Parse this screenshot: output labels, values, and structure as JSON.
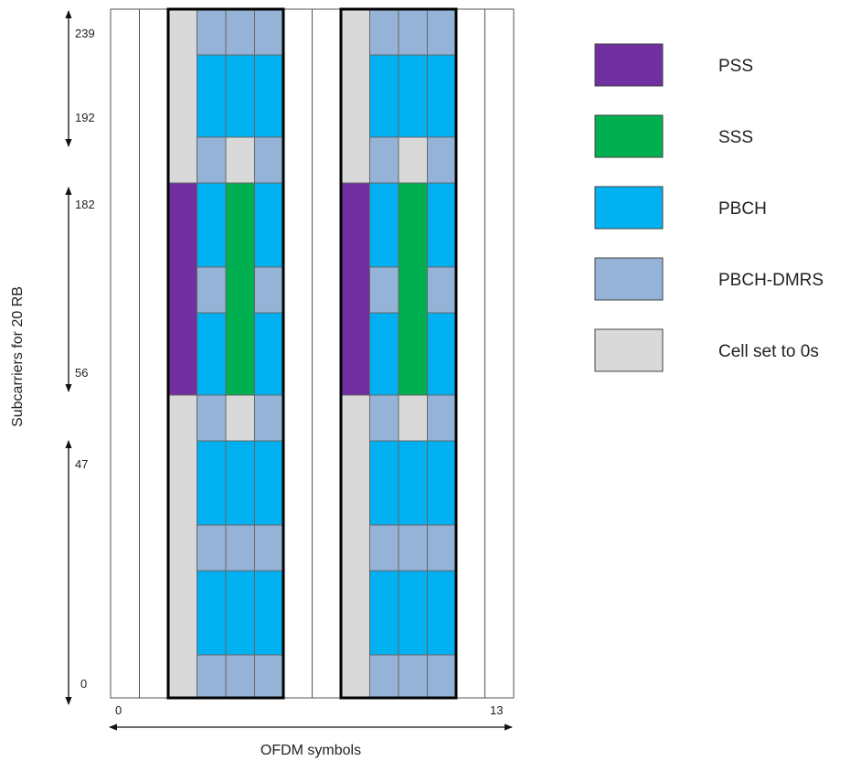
{
  "diagram": {
    "y_axis_label": "Subcarriers for 20 RB",
    "x_axis_label": "OFDM symbols",
    "x_ticks": [
      "0",
      "13"
    ],
    "y_ticks": [
      "239",
      "192",
      "182",
      "56",
      "47",
      "0"
    ],
    "num_symbols": 14,
    "ssb_blocks": [
      {
        "start_symbol": 2,
        "symbols": 4
      },
      {
        "start_symbol": 8,
        "symbols": 4
      }
    ]
  },
  "colors": {
    "pss": "#7030a0",
    "sss": "#00b050",
    "pbch": "#00b0f0",
    "pbch_dmrs": "#95b3d7",
    "zero": "#d9d9d9",
    "empty": "#ffffff"
  },
  "legend": [
    {
      "key": "pss",
      "label": "PSS"
    },
    {
      "key": "sss",
      "label": "SSS"
    },
    {
      "key": "pbch",
      "label": "PBCH"
    },
    {
      "key": "pbch_dmrs",
      "label": "PBCH-DMRS"
    },
    {
      "key": "zero",
      "label": "Cell set to 0s"
    }
  ],
  "ssb_structure": [
    {
      "band": "top-dmrs",
      "cells": [
        "zero",
        "pbch_dmrs",
        "pbch_dmrs",
        "pbch_dmrs"
      ]
    },
    {
      "band": "top-pbch",
      "cells": [
        "zero",
        "pbch",
        "pbch",
        "pbch"
      ]
    },
    {
      "band": "upper-edge",
      "cells": [
        "zero",
        "pbch_dmrs",
        "zero",
        "pbch_dmrs"
      ]
    },
    {
      "band": "sss-pbch-upper",
      "cells": [
        "pss",
        "pbch",
        "sss",
        "pbch"
      ]
    },
    {
      "band": "sss-dmrs",
      "cells": [
        "pss",
        "pbch_dmrs",
        "sss",
        "pbch_dmrs"
      ]
    },
    {
      "band": "sss-pbch-lower",
      "cells": [
        "pss",
        "pbch",
        "sss",
        "pbch"
      ]
    },
    {
      "band": "lower-edge",
      "cells": [
        "zero",
        "pbch_dmrs",
        "zero",
        "pbch_dmrs"
      ]
    },
    {
      "band": "bottom-pbch-1",
      "cells": [
        "zero",
        "pbch",
        "pbch",
        "pbch"
      ]
    },
    {
      "band": "bottom-dmrs-1",
      "cells": [
        "zero",
        "pbch_dmrs",
        "pbch_dmrs",
        "pbch_dmrs"
      ]
    },
    {
      "band": "bottom-pbch-2",
      "cells": [
        "zero",
        "pbch",
        "pbch",
        "pbch"
      ]
    },
    {
      "band": "bottom-dmrs-2",
      "cells": [
        "zero",
        "pbch_dmrs",
        "pbch_dmrs",
        "pbch_dmrs"
      ]
    }
  ]
}
